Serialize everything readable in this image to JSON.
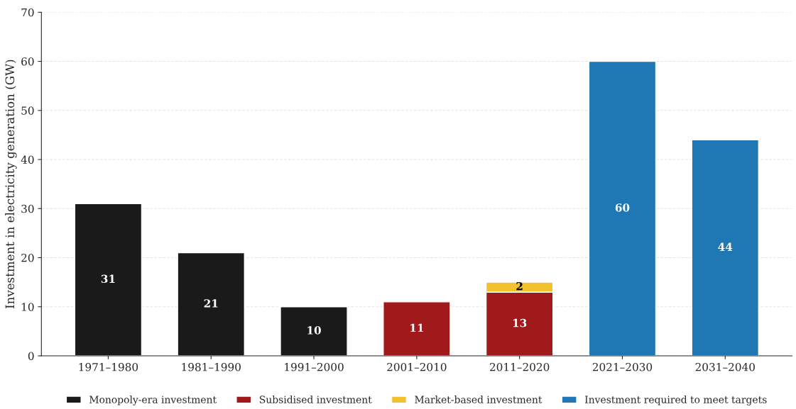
{
  "chart_data": {
    "type": "bar",
    "stacked": true,
    "ylabel": "Investment in electricity generation (GW)",
    "categories": [
      "1971–1980",
      "1981–1990",
      "1991–2000",
      "2001–2010",
      "2011–2020",
      "2021–2030",
      "2031–2040"
    ],
    "series": [
      {
        "name": "Monopoly-era investment",
        "color": "#1a1a1a",
        "values": [
          31,
          21,
          10,
          null,
          null,
          null,
          null
        ]
      },
      {
        "name": "Subsidised investment",
        "color": "#a0191b",
        "values": [
          null,
          null,
          null,
          11,
          13,
          null,
          null
        ]
      },
      {
        "name": "Market-based investment",
        "color": "#f2c12e",
        "values": [
          null,
          null,
          null,
          null,
          2,
          null,
          null
        ]
      },
      {
        "name": "Investment required to meet targets",
        "color": "#1f77b4",
        "values": [
          null,
          null,
          null,
          null,
          null,
          60,
          44
        ]
      }
    ],
    "ylim": [
      0,
      70
    ],
    "yticks": [
      0,
      10,
      20,
      30,
      40,
      50,
      60,
      70
    ],
    "grid": "y",
    "legend": "bottom",
    "data_labels": true
  }
}
